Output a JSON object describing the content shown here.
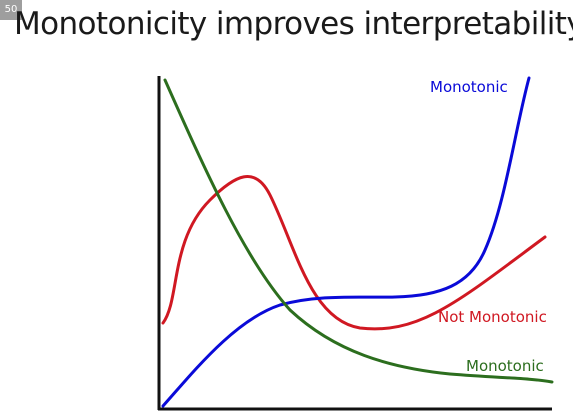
{
  "header": {
    "badge": "50",
    "title": "Monotonicity improves interpretability"
  },
  "diagram": {
    "curves": [
      {
        "id": "blue",
        "label": "Monotonic",
        "color": "#0a0ad8",
        "monotonic": true
      },
      {
        "id": "red",
        "label": "Not Monotonic",
        "color": "#d01822",
        "monotonic": false
      },
      {
        "id": "green",
        "label": "Monotonic",
        "color": "#2c6e1e",
        "monotonic": true
      }
    ],
    "axis_color": "#111111"
  }
}
